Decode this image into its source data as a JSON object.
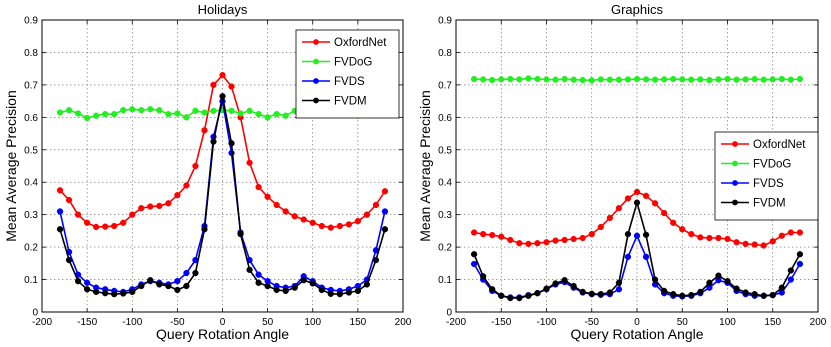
{
  "chart_data": [
    {
      "type": "line",
      "title": "Holidays",
      "xlabel": "Query Rotation Angle",
      "ylabel": "Mean Average Precision",
      "xlim": [
        -200,
        200
      ],
      "ylim": [
        0,
        0.9
      ],
      "xticks": [
        -200,
        -150,
        -100,
        -50,
        0,
        50,
        100,
        150,
        200
      ],
      "yticks": [
        0,
        0.1,
        0.2,
        0.3,
        0.4,
        0.5,
        0.6,
        0.7,
        0.8,
        0.9
      ],
      "grid": true,
      "legend_position": "top-right",
      "x": [
        -180,
        -170,
        -160,
        -150,
        -140,
        -130,
        -120,
        -110,
        -100,
        -90,
        -80,
        -70,
        -60,
        -50,
        -40,
        -30,
        -20,
        -10,
        0,
        10,
        20,
        30,
        40,
        50,
        60,
        70,
        80,
        90,
        100,
        110,
        120,
        130,
        140,
        150,
        160,
        170,
        180
      ],
      "series": [
        {
          "name": "OxfordNet",
          "color": "#ff0000",
          "values": [
            0.375,
            0.345,
            0.3,
            0.275,
            0.262,
            0.263,
            0.265,
            0.275,
            0.3,
            0.32,
            0.325,
            0.327,
            0.335,
            0.36,
            0.39,
            0.45,
            0.56,
            0.7,
            0.73,
            0.695,
            0.6,
            0.46,
            0.385,
            0.355,
            0.33,
            0.31,
            0.295,
            0.285,
            0.275,
            0.265,
            0.26,
            0.265,
            0.27,
            0.28,
            0.3,
            0.33,
            0.372
          ]
        },
        {
          "name": "FVDoG",
          "color": "#22ee22",
          "values": [
            0.615,
            0.622,
            0.612,
            0.598,
            0.605,
            0.61,
            0.61,
            0.622,
            0.625,
            0.622,
            0.625,
            0.622,
            0.61,
            0.612,
            0.6,
            0.62,
            0.615,
            0.62,
            0.622,
            0.62,
            0.612,
            0.62,
            0.61,
            0.6,
            0.61,
            0.605,
            0.62,
            0.632,
            0.615,
            0.63,
            0.615,
            0.612,
            0.61,
            0.605,
            0.615,
            0.622,
            0.615
          ]
        },
        {
          "name": "FVDS",
          "color": "#0000ff",
          "values": [
            0.31,
            0.185,
            0.115,
            0.09,
            0.075,
            0.07,
            0.065,
            0.062,
            0.07,
            0.085,
            0.095,
            0.09,
            0.085,
            0.095,
            0.12,
            0.16,
            0.265,
            0.54,
            0.65,
            0.49,
            0.245,
            0.16,
            0.115,
            0.095,
            0.08,
            0.075,
            0.08,
            0.11,
            0.095,
            0.075,
            0.068,
            0.065,
            0.07,
            0.08,
            0.1,
            0.19,
            0.31
          ]
        },
        {
          "name": "FVDM",
          "color": "#000000",
          "values": [
            0.255,
            0.16,
            0.095,
            0.07,
            0.062,
            0.058,
            0.055,
            0.057,
            0.062,
            0.08,
            0.098,
            0.085,
            0.08,
            0.068,
            0.08,
            0.12,
            0.255,
            0.525,
            0.665,
            0.52,
            0.24,
            0.13,
            0.09,
            0.08,
            0.068,
            0.065,
            0.075,
            0.098,
            0.088,
            0.068,
            0.056,
            0.055,
            0.06,
            0.065,
            0.085,
            0.16,
            0.255
          ]
        }
      ]
    },
    {
      "type": "line",
      "title": "Graphics",
      "xlabel": "Query Rotation Angle",
      "ylabel": "Mean Average Precision",
      "xlim": [
        -200,
        200
      ],
      "ylim": [
        0,
        0.9
      ],
      "xticks": [
        -200,
        -150,
        -100,
        -50,
        0,
        50,
        100,
        150,
        200
      ],
      "yticks": [
        0,
        0.1,
        0.2,
        0.3,
        0.4,
        0.5,
        0.6,
        0.7,
        0.8,
        0.9
      ],
      "grid": true,
      "legend_position": "right",
      "x": [
        -180,
        -170,
        -160,
        -150,
        -140,
        -130,
        -120,
        -110,
        -100,
        -90,
        -80,
        -70,
        -60,
        -50,
        -40,
        -30,
        -20,
        -10,
        0,
        10,
        20,
        30,
        40,
        50,
        60,
        70,
        80,
        90,
        100,
        110,
        120,
        130,
        140,
        150,
        160,
        170,
        180
      ],
      "series": [
        {
          "name": "OxfordNet",
          "color": "#ff0000",
          "values": [
            0.245,
            0.24,
            0.237,
            0.232,
            0.222,
            0.212,
            0.21,
            0.212,
            0.215,
            0.22,
            0.222,
            0.225,
            0.228,
            0.24,
            0.262,
            0.29,
            0.32,
            0.35,
            0.37,
            0.358,
            0.335,
            0.305,
            0.275,
            0.255,
            0.24,
            0.23,
            0.228,
            0.228,
            0.225,
            0.215,
            0.21,
            0.208,
            0.205,
            0.218,
            0.235,
            0.245,
            0.245
          ]
        },
        {
          "name": "FVDoG",
          "color": "#22ee22",
          "values": [
            0.718,
            0.717,
            0.715,
            0.717,
            0.718,
            0.717,
            0.72,
            0.718,
            0.717,
            0.716,
            0.718,
            0.716,
            0.715,
            0.714,
            0.717,
            0.716,
            0.716,
            0.717,
            0.718,
            0.717,
            0.716,
            0.717,
            0.718,
            0.717,
            0.716,
            0.717,
            0.715,
            0.717,
            0.718,
            0.716,
            0.717,
            0.718,
            0.716,
            0.717,
            0.718,
            0.716,
            0.718
          ]
        },
        {
          "name": "FVDS",
          "color": "#0000ff",
          "values": [
            0.148,
            0.1,
            0.065,
            0.05,
            0.045,
            0.045,
            0.052,
            0.058,
            0.07,
            0.085,
            0.092,
            0.075,
            0.06,
            0.055,
            0.053,
            0.055,
            0.07,
            0.17,
            0.235,
            0.17,
            0.085,
            0.058,
            0.05,
            0.048,
            0.05,
            0.058,
            0.075,
            0.098,
            0.09,
            0.065,
            0.055,
            0.05,
            0.05,
            0.052,
            0.06,
            0.1,
            0.148
          ]
        },
        {
          "name": "FVDM",
          "color": "#000000",
          "values": [
            0.178,
            0.11,
            0.07,
            0.05,
            0.043,
            0.043,
            0.05,
            0.058,
            0.072,
            0.088,
            0.098,
            0.08,
            0.062,
            0.056,
            0.055,
            0.06,
            0.09,
            0.24,
            0.337,
            0.238,
            0.1,
            0.065,
            0.055,
            0.05,
            0.052,
            0.062,
            0.09,
            0.112,
            0.095,
            0.072,
            0.06,
            0.055,
            0.05,
            0.052,
            0.075,
            0.128,
            0.178
          ]
        }
      ]
    }
  ]
}
